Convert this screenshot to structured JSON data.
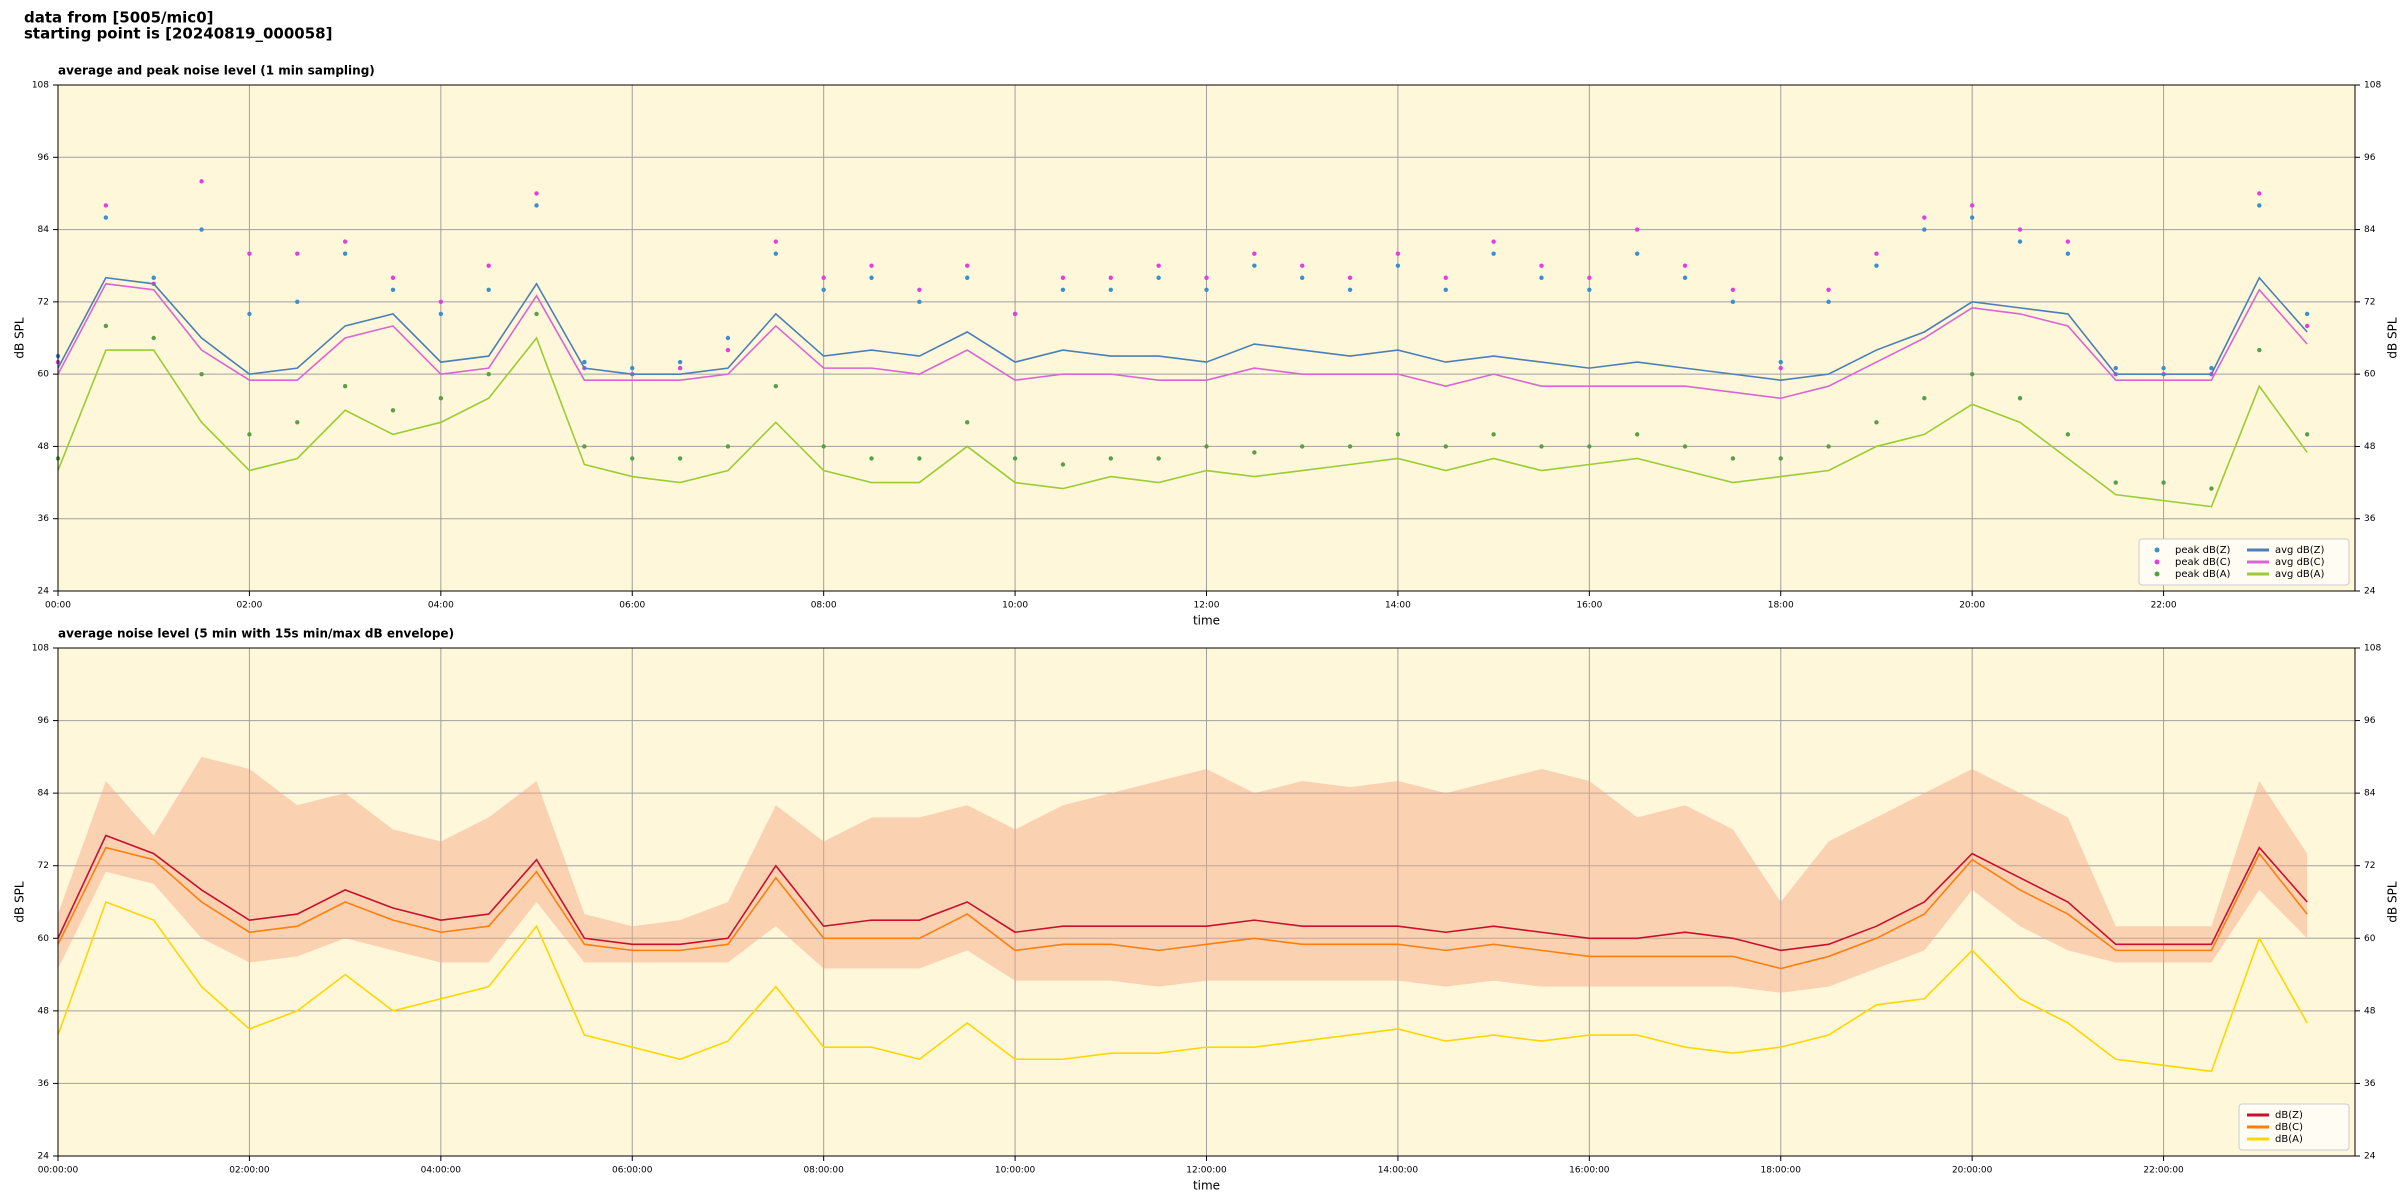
{
  "page_title": [
    "data from [5005/mic0]",
    "starting point is [20240819_000058]"
  ],
  "chart_data": [
    {
      "type": "line",
      "title": "average and peak noise level (1 min sampling)",
      "xlabel": "time",
      "ylabel": "dB SPL",
      "xlim": [
        0,
        24
      ],
      "ylim": [
        24,
        108
      ],
      "yticks": [
        24,
        36,
        48,
        60,
        72,
        84,
        96,
        108
      ],
      "xticks": [
        {
          "value": 0,
          "label": "00:00"
        },
        {
          "value": 2,
          "label": "02:00"
        },
        {
          "value": 4,
          "label": "04:00"
        },
        {
          "value": 6,
          "label": "06:00"
        },
        {
          "value": 8,
          "label": "08:00"
        },
        {
          "value": 10,
          "label": "10:00"
        },
        {
          "value": 12,
          "label": "12:00"
        },
        {
          "value": 14,
          "label": "14:00"
        },
        {
          "value": 16,
          "label": "16:00"
        },
        {
          "value": 18,
          "label": "18:00"
        },
        {
          "value": 20,
          "label": "20:00"
        },
        {
          "value": 22,
          "label": "22:00"
        }
      ],
      "grid": true,
      "legend": "lower right",
      "legend_columns": 2,
      "x": [
        0,
        0.5,
        1,
        1.5,
        2,
        2.5,
        3,
        3.5,
        4,
        4.5,
        5,
        5.5,
        6,
        6.5,
        7,
        7.5,
        8,
        8.5,
        9,
        9.5,
        10,
        10.5,
        11,
        11.5,
        12,
        12.5,
        13,
        13.5,
        14,
        14.5,
        15,
        15.5,
        16,
        16.5,
        17,
        17.5,
        18,
        18.5,
        19,
        19.5,
        20,
        20.5,
        21,
        21.5,
        22,
        22.5,
        23,
        23.5
      ],
      "series": [
        {
          "name": "peak dB(Z)",
          "kind": "scatter",
          "color": "#3a8fd0",
          "values": [
            63,
            86,
            76,
            84,
            70,
            72,
            80,
            74,
            70,
            74,
            88,
            62,
            61,
            62,
            66,
            80,
            74,
            76,
            72,
            76,
            70,
            74,
            74,
            76,
            74,
            78,
            76,
            74,
            78,
            74,
            80,
            76,
            74,
            80,
            76,
            72,
            62,
            72,
            78,
            84,
            86,
            82,
            80,
            61,
            61,
            61,
            88,
            70
          ]
        },
        {
          "name": "peak dB(C)",
          "kind": "scatter",
          "color": "#e23ee0",
          "values": [
            62,
            88,
            75,
            92,
            80,
            80,
            82,
            76,
            72,
            78,
            90,
            61,
            60,
            61,
            64,
            82,
            76,
            78,
            74,
            78,
            70,
            76,
            76,
            78,
            76,
            80,
            78,
            76,
            80,
            76,
            82,
            78,
            76,
            84,
            78,
            74,
            61,
            74,
            80,
            86,
            88,
            84,
            82,
            60,
            60,
            60,
            90,
            68
          ]
        },
        {
          "name": "peak dB(A)",
          "kind": "scatter",
          "color": "#5a9e4a",
          "values": [
            46,
            68,
            66,
            60,
            50,
            52,
            58,
            54,
            56,
            60,
            70,
            48,
            46,
            46,
            48,
            58,
            48,
            46,
            46,
            52,
            46,
            45,
            46,
            46,
            48,
            47,
            48,
            48,
            50,
            48,
            50,
            48,
            48,
            50,
            48,
            46,
            46,
            48,
            52,
            56,
            60,
            56,
            50,
            42,
            42,
            41,
            64,
            50
          ]
        },
        {
          "name": "avg dB(Z)",
          "kind": "line",
          "color": "#4c7fb8",
          "values": [
            61,
            76,
            75,
            66,
            60,
            61,
            68,
            70,
            62,
            63,
            75,
            61,
            60,
            60,
            61,
            70,
            63,
            64,
            63,
            67,
            62,
            64,
            63,
            63,
            62,
            65,
            64,
            63,
            64,
            62,
            63,
            62,
            61,
            62,
            61,
            60,
            59,
            60,
            64,
            67,
            72,
            71,
            70,
            60,
            60,
            60,
            76,
            67
          ]
        },
        {
          "name": "avg dB(C)",
          "kind": "line",
          "color": "#d866d4",
          "values": [
            60,
            75,
            74,
            64,
            59,
            59,
            66,
            68,
            60,
            61,
            73,
            59,
            59,
            59,
            60,
            68,
            61,
            61,
            60,
            64,
            59,
            60,
            60,
            59,
            59,
            61,
            60,
            60,
            60,
            58,
            60,
            58,
            58,
            58,
            58,
            57,
            56,
            58,
            62,
            66,
            71,
            70,
            68,
            59,
            59,
            59,
            74,
            65
          ]
        },
        {
          "name": "avg dB(A)",
          "kind": "line",
          "color": "#9acd32",
          "values": [
            44,
            64,
            64,
            52,
            44,
            46,
            54,
            50,
            52,
            56,
            66,
            45,
            43,
            42,
            44,
            52,
            44,
            42,
            42,
            48,
            42,
            41,
            43,
            42,
            44,
            43,
            44,
            45,
            46,
            44,
            46,
            44,
            45,
            46,
            44,
            42,
            43,
            44,
            48,
            50,
            55,
            52,
            46,
            40,
            39,
            38,
            58,
            47
          ]
        }
      ]
    },
    {
      "type": "line",
      "title": "average noise level (5 min with 15s min/max dB envelope)",
      "xlabel": "time",
      "ylabel": "dB SPL",
      "xlim": [
        0,
        24
      ],
      "ylim": [
        24,
        108
      ],
      "yticks": [
        24,
        36,
        48,
        60,
        72,
        84,
        96,
        108
      ],
      "xticks": [
        {
          "value": 0,
          "label": "00:00:00"
        },
        {
          "value": 2,
          "label": "02:00:00"
        },
        {
          "value": 4,
          "label": "04:00:00"
        },
        {
          "value": 6,
          "label": "06:00:00"
        },
        {
          "value": 8,
          "label": "08:00:00"
        },
        {
          "value": 10,
          "label": "10:00:00"
        },
        {
          "value": 12,
          "label": "12:00:00"
        },
        {
          "value": 14,
          "label": "14:00:00"
        },
        {
          "value": 16,
          "label": "16:00:00"
        },
        {
          "value": 18,
          "label": "18:00:00"
        },
        {
          "value": 20,
          "label": "20:00:00"
        },
        {
          "value": 22,
          "label": "22:00:00"
        }
      ],
      "grid": true,
      "legend": "lower right",
      "legend_columns": 1,
      "x": [
        0,
        0.5,
        1,
        1.5,
        2,
        2.5,
        3,
        3.5,
        4,
        4.5,
        5,
        5.5,
        6,
        6.5,
        7,
        7.5,
        8,
        8.5,
        9,
        9.5,
        10,
        10.5,
        11,
        11.5,
        12,
        12.5,
        13,
        13.5,
        14,
        14.5,
        15,
        15.5,
        16,
        16.5,
        17,
        17.5,
        18,
        18.5,
        19,
        19.5,
        20,
        20.5,
        21,
        21.5,
        22,
        22.5,
        23,
        23.5
      ],
      "envelope": {
        "color": "#f4a582",
        "low": [
          55,
          71,
          69,
          60,
          56,
          57,
          60,
          58,
          56,
          56,
          66,
          56,
          56,
          56,
          56,
          62,
          55,
          55,
          55,
          58,
          53,
          53,
          53,
          52,
          53,
          53,
          53,
          53,
          53,
          52,
          53,
          52,
          52,
          52,
          52,
          52,
          51,
          52,
          55,
          58,
          68,
          62,
          58,
          56,
          56,
          56,
          68,
          60
        ],
        "high": [
          64,
          86,
          77,
          90,
          88,
          82,
          84,
          78,
          76,
          80,
          86,
          64,
          62,
          63,
          66,
          82,
          76,
          80,
          80,
          82,
          78,
          82,
          84,
          86,
          88,
          84,
          86,
          85,
          86,
          84,
          86,
          88,
          86,
          80,
          82,
          78,
          66,
          76,
          80,
          84,
          88,
          84,
          80,
          62,
          62,
          62,
          86,
          74
        ]
      },
      "series": [
        {
          "name": "dB(Z)",
          "kind": "line",
          "color": "#c8102e",
          "values": [
            60,
            77,
            74,
            68,
            63,
            64,
            68,
            65,
            63,
            64,
            73,
            60,
            59,
            59,
            60,
            72,
            62,
            63,
            63,
            66,
            61,
            62,
            62,
            62,
            62,
            63,
            62,
            62,
            62,
            61,
            62,
            61,
            60,
            60,
            61,
            60,
            58,
            59,
            62,
            66,
            74,
            70,
            66,
            59,
            59,
            59,
            75,
            66
          ]
        },
        {
          "name": "dB(C)",
          "kind": "line",
          "color": "#ff7f0e",
          "values": [
            59,
            75,
            73,
            66,
            61,
            62,
            66,
            63,
            61,
            62,
            71,
            59,
            58,
            58,
            59,
            70,
            60,
            60,
            60,
            64,
            58,
            59,
            59,
            58,
            59,
            60,
            59,
            59,
            59,
            58,
            59,
            58,
            57,
            57,
            57,
            57,
            55,
            57,
            60,
            64,
            73,
            68,
            64,
            58,
            58,
            58,
            74,
            64
          ]
        },
        {
          "name": "dB(A)",
          "kind": "line",
          "color": "#ffd700",
          "values": [
            44,
            66,
            63,
            52,
            45,
            48,
            54,
            48,
            50,
            52,
            62,
            44,
            42,
            40,
            43,
            52,
            42,
            42,
            40,
            46,
            40,
            40,
            41,
            41,
            42,
            42,
            43,
            44,
            45,
            43,
            44,
            43,
            44,
            44,
            42,
            41,
            42,
            44,
            49,
            50,
            58,
            50,
            46,
            40,
            39,
            38,
            60,
            46
          ]
        }
      ]
    }
  ]
}
